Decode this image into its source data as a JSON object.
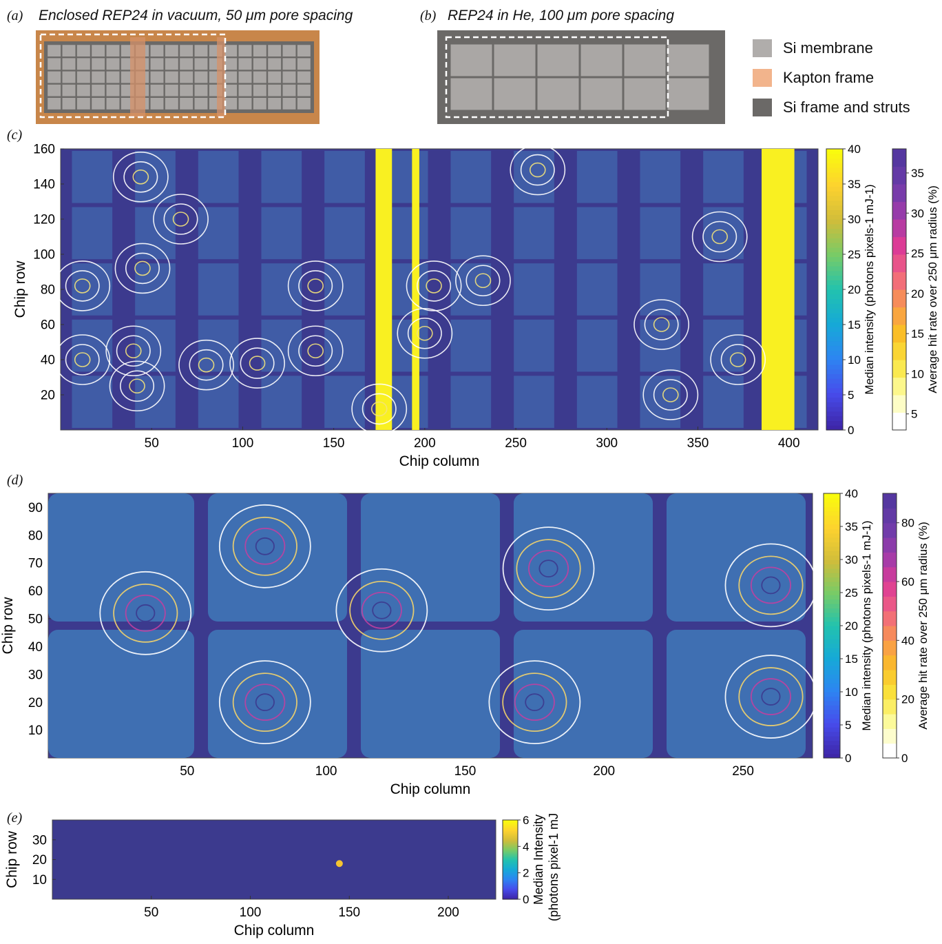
{
  "panel_a": {
    "label": "(a)",
    "title": "Enclosed REP24 in vacuum, 50 μm pore spacing"
  },
  "panel_b": {
    "label": "(b)",
    "title": "REP24 in He, 100 μm pore spacing"
  },
  "legend": {
    "items": [
      {
        "label": "Si membrane",
        "color": "#b0adab"
      },
      {
        "label": "Kapton frame",
        "color": "#f2b48c"
      },
      {
        "label": "Si frame and struts",
        "color": "#6b6967"
      }
    ]
  },
  "colors": {
    "kapton": "#c8864a",
    "kapton_strut": "#d6926a",
    "si_membrane": "#aaa7a5",
    "si_frame": "#6b6967",
    "heatmap_bg": "#3c3a8e",
    "heatmap_fill": "#405ca6",
    "heatmap_fill_d": "#3f6fb2",
    "yellow": "#f9f021"
  },
  "chart_data": [
    {
      "panel_label": "(c)",
      "type": "heatmap",
      "xlabel": "Chip column",
      "ylabel": "Chip row",
      "xlim": [
        0,
        416
      ],
      "ylim": [
        0,
        160
      ],
      "xticks": [
        50,
        100,
        150,
        200,
        250,
        300,
        350,
        400
      ],
      "yticks": [
        20,
        40,
        60,
        80,
        100,
        120,
        140,
        160
      ],
      "grid_columns": 12,
      "grid_rows": 5,
      "saturated_column_bands": [
        [
          173,
          182
        ],
        [
          193,
          197
        ],
        [
          385,
          403
        ]
      ],
      "colorbar_intensity": {
        "label": "Median intensity (photons pixels-1 mJ-1)",
        "label_sup": "",
        "ticks": [
          0,
          5,
          10,
          15,
          20,
          25,
          30,
          35,
          40
        ],
        "range": [
          0,
          40
        ]
      },
      "colorbar_hitrate": {
        "label": "Average hit rate over 250 μm radius (%)",
        "ticks": [
          5,
          10,
          15,
          20,
          25,
          30,
          35
        ],
        "range": [
          3,
          38
        ]
      },
      "hotspots": [
        {
          "x": 12,
          "y": 40
        },
        {
          "x": 12,
          "y": 82
        },
        {
          "x": 40,
          "y": 45
        },
        {
          "x": 42,
          "y": 25
        },
        {
          "x": 45,
          "y": 92
        },
        {
          "x": 44,
          "y": 144
        },
        {
          "x": 66,
          "y": 120
        },
        {
          "x": 80,
          "y": 37
        },
        {
          "x": 108,
          "y": 38
        },
        {
          "x": 140,
          "y": 45
        },
        {
          "x": 140,
          "y": 82
        },
        {
          "x": 175,
          "y": 12
        },
        {
          "x": 200,
          "y": 55
        },
        {
          "x": 205,
          "y": 82
        },
        {
          "x": 232,
          "y": 85
        },
        {
          "x": 262,
          "y": 148
        },
        {
          "x": 330,
          "y": 60
        },
        {
          "x": 335,
          "y": 20
        },
        {
          "x": 362,
          "y": 110
        },
        {
          "x": 372,
          "y": 40
        }
      ]
    },
    {
      "panel_label": "(d)",
      "type": "heatmap",
      "xlabel": "Chip column",
      "ylabel": "Chip row",
      "xlim": [
        0,
        275
      ],
      "ylim": [
        0,
        95
      ],
      "xticks": [
        50,
        100,
        150,
        200,
        250
      ],
      "yticks": [
        10,
        20,
        30,
        40,
        50,
        60,
        70,
        80,
        90
      ],
      "grid_columns": 5,
      "grid_rows": 2,
      "colorbar_intensity": {
        "label": "Median intensity (photons pixels-1 mJ-1)",
        "ticks": [
          0,
          5,
          10,
          15,
          20,
          25,
          30,
          35,
          40
        ],
        "range": [
          0,
          40
        ]
      },
      "colorbar_hitrate": {
        "label": "Average hit rate over 250 μm radius (%)",
        "ticks": [
          0,
          20,
          40,
          60,
          80
        ],
        "range": [
          0,
          90
        ]
      },
      "hotspots": [
        {
          "x": 78,
          "y": 76
        },
        {
          "x": 78,
          "y": 20
        },
        {
          "x": 180,
          "y": 68
        },
        {
          "x": 175,
          "y": 20
        },
        {
          "x": 260,
          "y": 62
        },
        {
          "x": 260,
          "y": 22
        },
        {
          "x": 120,
          "y": 53
        },
        {
          "x": 35,
          "y": 52
        }
      ]
    },
    {
      "panel_label": "(e)",
      "type": "heatmap",
      "xlabel": "Chip column",
      "ylabel": "Chip row",
      "xlim": [
        0,
        224
      ],
      "ylim": [
        0,
        40
      ],
      "xticks": [
        50,
        100,
        150,
        200
      ],
      "yticks": [
        10,
        20,
        30
      ],
      "colorbar_intensity": {
        "label_line1": "Median Intensity",
        "label_line2": "(photons pixel-1 mJ-1)",
        "ticks": [
          0,
          2,
          4,
          6
        ],
        "range": [
          0,
          6
        ]
      },
      "hotspots": [
        {
          "x": 145,
          "y": 18
        }
      ]
    }
  ]
}
